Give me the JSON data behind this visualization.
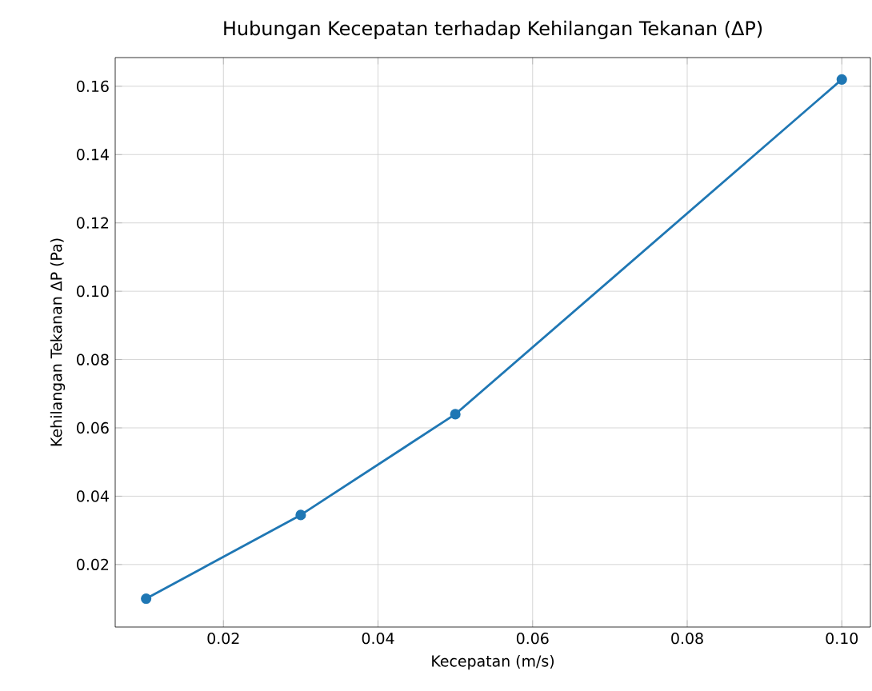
{
  "chart_data": {
    "type": "line",
    "title": "Hubungan Kecepatan terhadap Kehilangan Tekanan (ΔP)",
    "xlabel": "Kecepatan (m/s)",
    "ylabel": "Kehilangan Tekanan ΔP (Pa)",
    "x": [
      0.01,
      0.03,
      0.05,
      0.1
    ],
    "series": [
      {
        "color": "#1f77b4",
        "values": [
          0.01,
          0.0345,
          0.064,
          0.162
        ]
      }
    ],
    "xlim": [
      0.006,
      0.1037
    ],
    "ylim": [
      0.0017,
      0.1684
    ],
    "xticks": [
      {
        "value": 0.02,
        "label": "0.02"
      },
      {
        "value": 0.04,
        "label": "0.04"
      },
      {
        "value": 0.06,
        "label": "0.06"
      },
      {
        "value": 0.08,
        "label": "0.08"
      },
      {
        "value": 0.1,
        "label": "0.10"
      }
    ],
    "yticks": [
      {
        "value": 0.02,
        "label": "0.02"
      },
      {
        "value": 0.04,
        "label": "0.04"
      },
      {
        "value": 0.06,
        "label": "0.06"
      },
      {
        "value": 0.08,
        "label": "0.08"
      },
      {
        "value": 0.1,
        "label": "0.10"
      },
      {
        "value": 0.12,
        "label": "0.12"
      },
      {
        "value": 0.14,
        "label": "0.14"
      },
      {
        "value": 0.16,
        "label": "0.16"
      }
    ],
    "grid": true,
    "marker": "circle",
    "line_style": "solid"
  }
}
